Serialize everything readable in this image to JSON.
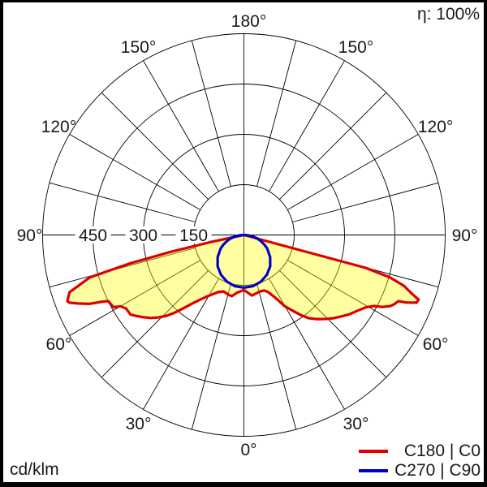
{
  "corner": {
    "efficiency": "η: 100%",
    "unit": "cd/klm"
  },
  "legend": {
    "items": [
      {
        "label": "C180 | C0",
        "color": "#dd0000"
      },
      {
        "label": "C270 | C90",
        "color": "#0000cc"
      }
    ]
  },
  "chart_data": {
    "type": "polar",
    "kind": "luminous-intensity-distribution",
    "unit": "cd/klm",
    "efficiency_percent": 100,
    "rmax": 600,
    "orientation": {
      "zero_at": "bottom",
      "top_label": "180°"
    },
    "grid": {
      "ring_values": [
        150,
        300,
        450,
        600
      ],
      "tick_labels": [
        {
          "value": 450,
          "text": "450"
        },
        {
          "value": 300,
          "text": "300"
        },
        {
          "value": 150,
          "text": "150"
        }
      ],
      "spoke_step_deg": 15,
      "label_step_deg": 30
    },
    "angle_labels": [
      {
        "angle": 0,
        "text": "0°"
      },
      {
        "angle": 30,
        "text": "30°"
      },
      {
        "angle": 60,
        "text": "60°"
      },
      {
        "angle": 90,
        "text": "90°"
      },
      {
        "angle": 120,
        "text": "120°"
      },
      {
        "angle": 150,
        "text": "150°"
      },
      {
        "angle": 180,
        "text": "180°"
      }
    ],
    "series": [
      {
        "name": "C180 | C0",
        "stroke": "#dd0000",
        "fill": "rgba(255,255,0,0.37)",
        "left_plane": "C180",
        "right_plane": "C0",
        "points_left": [
          [
            82,
            0
          ],
          [
            78,
            100
          ],
          [
            77,
            223
          ],
          [
            76,
            349
          ],
          [
            74.6,
            477
          ],
          [
            71.8,
            547
          ],
          [
            69.5,
            562
          ],
          [
            68.8,
            558
          ],
          [
            67.6,
            536
          ],
          [
            66,
            505
          ],
          [
            64.8,
            467
          ],
          [
            64,
            450
          ],
          [
            61,
            444
          ],
          [
            60,
            425
          ],
          [
            58,
            414
          ],
          [
            55,
            413
          ],
          [
            53.6,
            405
          ],
          [
            51,
            389
          ],
          [
            48.3,
            372
          ],
          [
            46,
            354
          ],
          [
            43.7,
            333
          ],
          [
            41.7,
            310
          ],
          [
            39.6,
            284
          ],
          [
            36,
            247
          ],
          [
            30.8,
            213
          ],
          [
            24.4,
            187
          ],
          [
            19.8,
            179
          ],
          [
            14.5,
            184
          ],
          [
            11.2,
            186
          ],
          [
            7.2,
            174
          ],
          [
            0,
            164
          ]
        ],
        "points_right": [
          [
            0,
            164
          ],
          [
            7.6,
            182
          ],
          [
            16,
            175
          ],
          [
            20,
            176
          ],
          [
            23,
            185
          ],
          [
            27,
            213
          ],
          [
            29.7,
            244
          ],
          [
            32.7,
            268
          ],
          [
            35.4,
            293
          ],
          [
            38,
            315
          ],
          [
            41,
            332
          ],
          [
            44,
            348
          ],
          [
            47,
            364
          ],
          [
            50,
            378
          ],
          [
            53,
            393
          ],
          [
            56.3,
            407
          ],
          [
            59.2,
            422
          ],
          [
            61.3,
            441
          ],
          [
            62.5,
            465
          ],
          [
            64.1,
            485
          ],
          [
            65.2,
            493
          ],
          [
            66.8,
            501
          ],
          [
            67.4,
            524
          ],
          [
            68.6,
            553
          ],
          [
            69.7,
            555
          ],
          [
            70.7,
            531
          ],
          [
            72.4,
            500
          ],
          [
            73.8,
            453
          ],
          [
            74.9,
            376
          ],
          [
            75,
            0
          ]
        ]
      },
      {
        "name": "C270 | C90",
        "stroke": "#0000cc",
        "fill": "none",
        "left_plane": "C270",
        "right_plane": "C90",
        "points_left": [
          [
            90,
            0
          ],
          [
            85,
            14
          ],
          [
            80,
            28
          ],
          [
            75,
            42
          ],
          [
            70,
            54
          ],
          [
            65,
            67
          ],
          [
            60,
            80
          ],
          [
            50,
            102
          ],
          [
            40,
            122
          ],
          [
            30,
            137
          ],
          [
            20,
            148
          ],
          [
            10,
            155
          ],
          [
            0,
            157
          ]
        ],
        "points_right": [
          [
            0,
            157
          ],
          [
            10,
            155
          ],
          [
            20,
            148
          ],
          [
            30,
            137
          ],
          [
            40,
            122
          ],
          [
            50,
            102
          ],
          [
            60,
            80
          ],
          [
            65,
            67
          ],
          [
            70,
            54
          ],
          [
            75,
            42
          ],
          [
            80,
            28
          ],
          [
            85,
            14
          ],
          [
            90,
            0
          ]
        ]
      }
    ]
  }
}
